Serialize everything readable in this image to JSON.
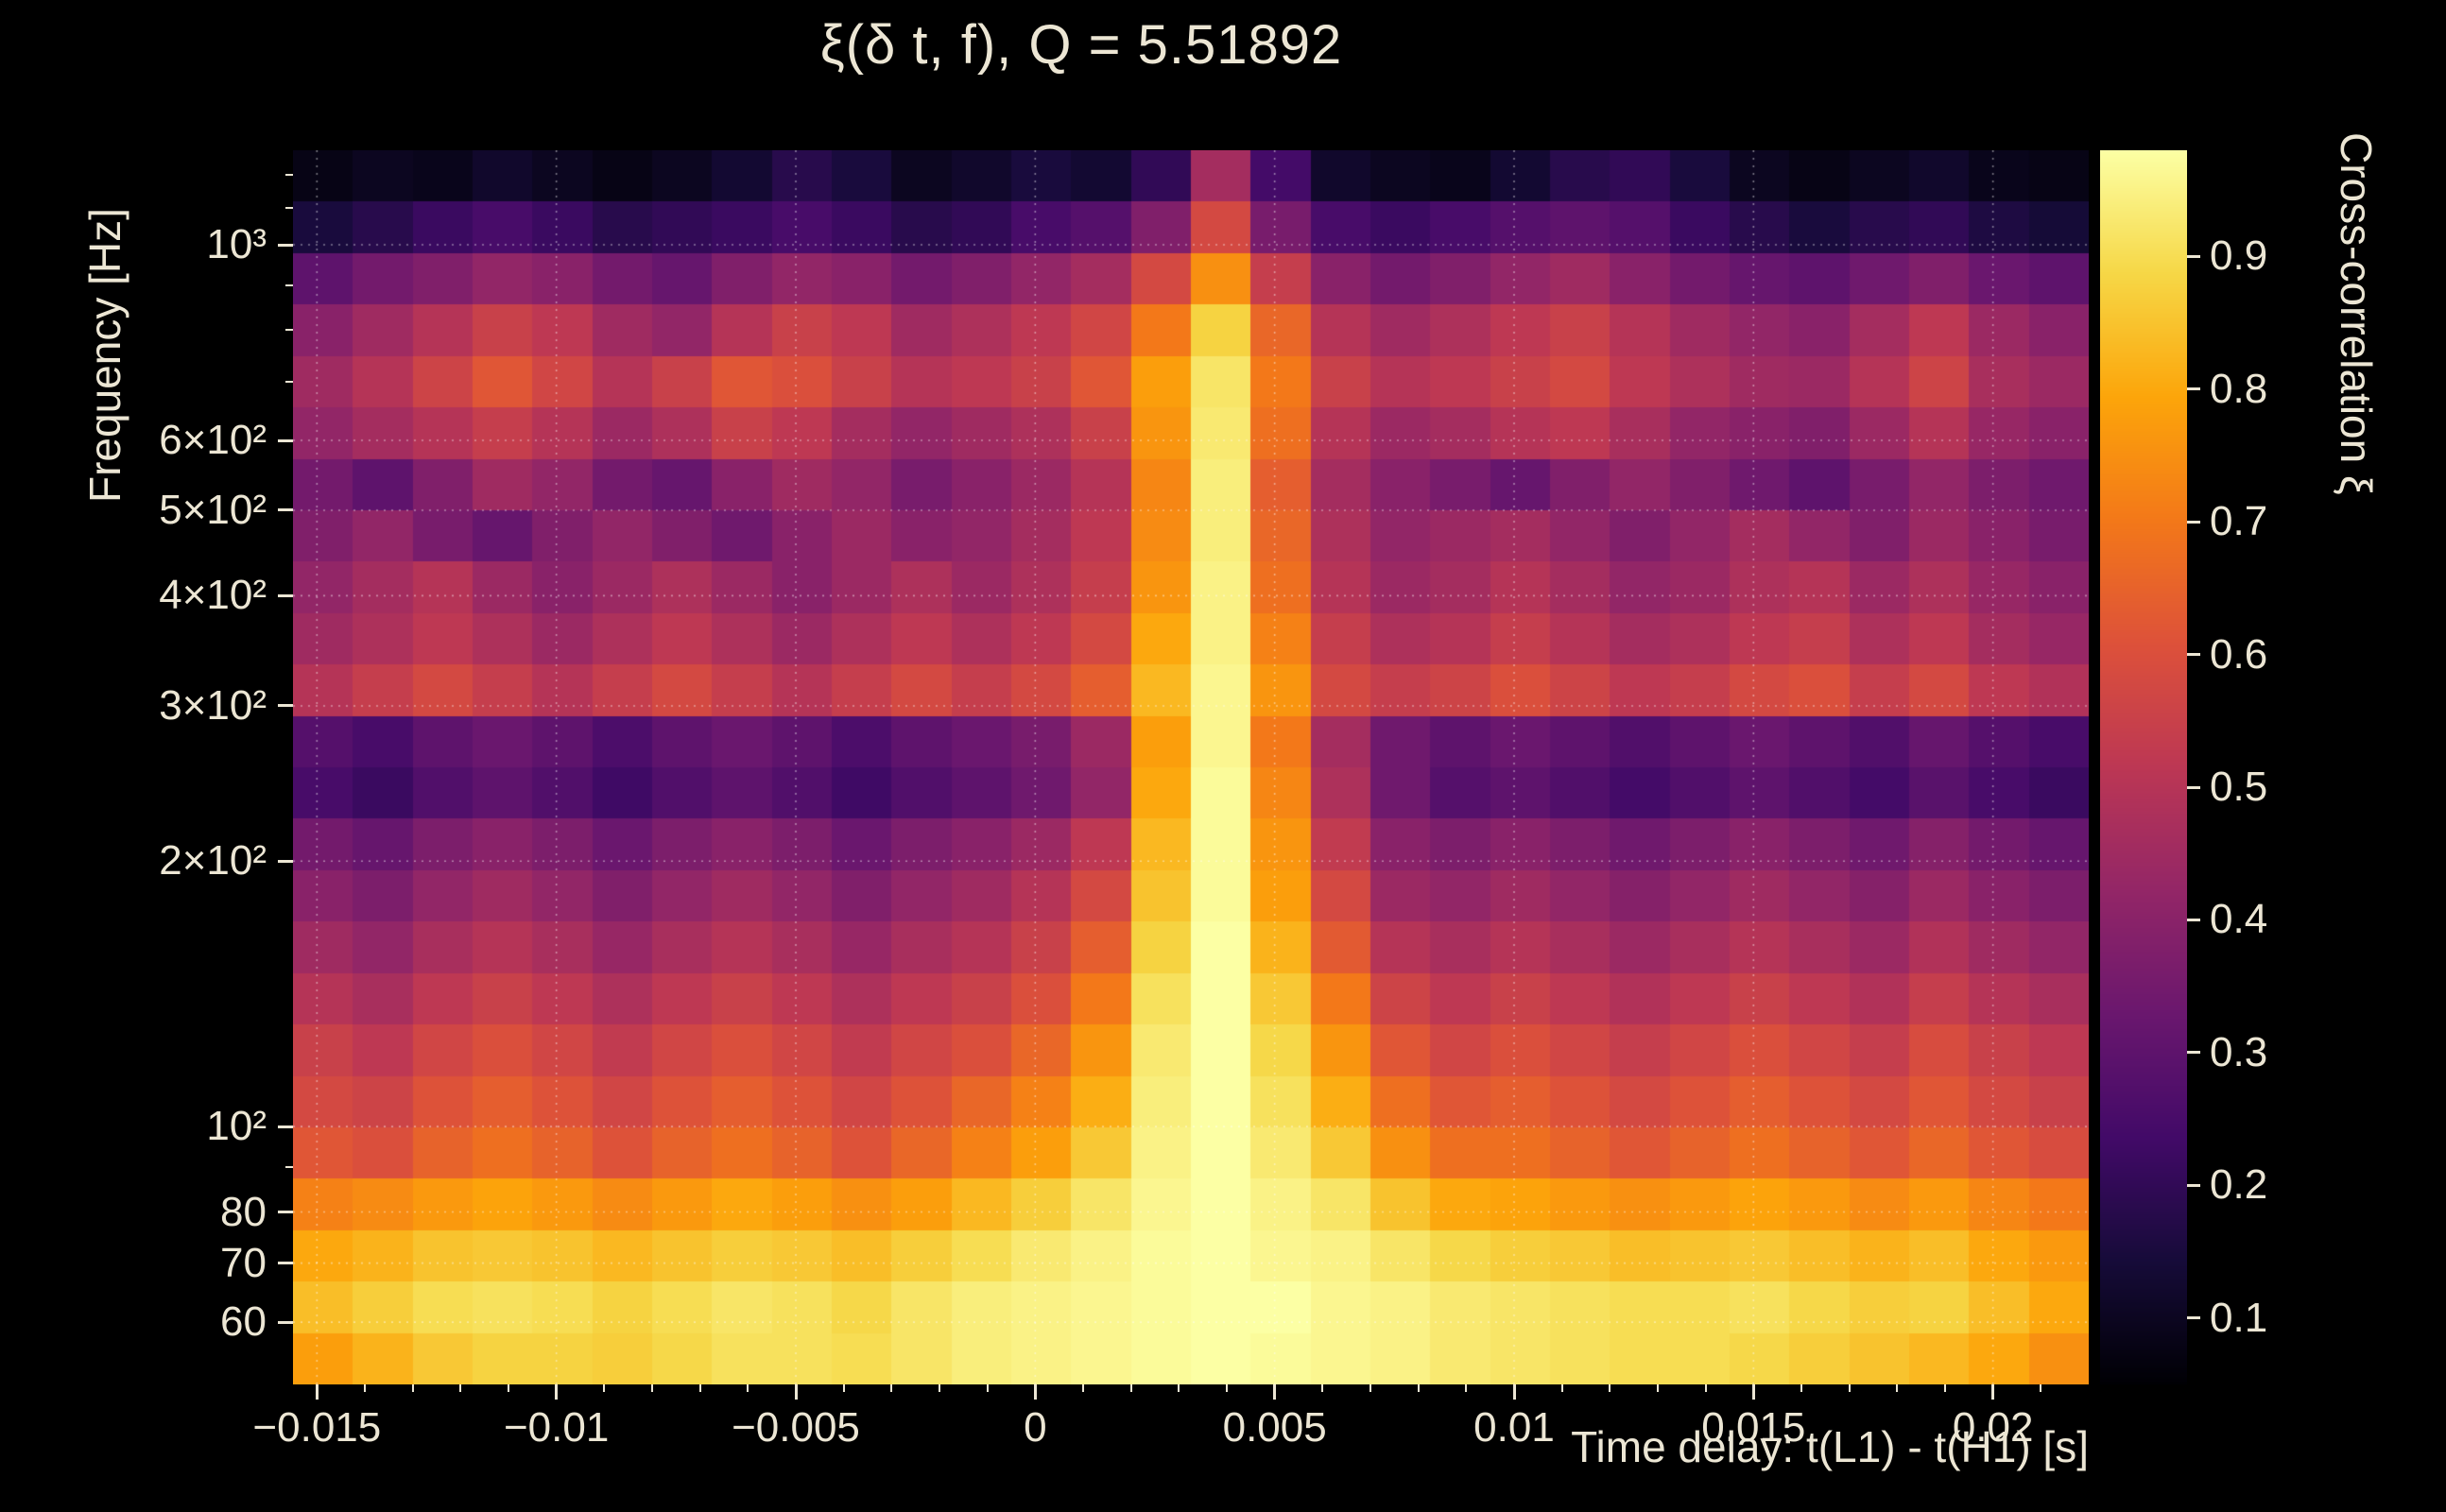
{
  "title": "ξ(δ t, f), Q = 5.51892",
  "colors": {
    "background": "#000000",
    "text": "#ece6d4",
    "grid": "rgba(255,255,255,0.45)"
  },
  "axes": {
    "x": {
      "label": "Time delay: t(L1) - t(H1) [s]",
      "min": -0.0155,
      "max": 0.022,
      "major_ticks": [
        -0.015,
        -0.01,
        -0.005,
        0,
        0.005,
        0.01,
        0.015,
        0.02
      ],
      "tick_labels": [
        "−0.015",
        "−0.01",
        "−0.005",
        "0",
        "0.005",
        "0.01",
        "0.015",
        "0.02"
      ],
      "minor_step": 0.001
    },
    "y": {
      "label": "Frequency [Hz]",
      "scale": "log",
      "min": 51,
      "max": 1280,
      "major_ticks": [
        60,
        70,
        80,
        100,
        200,
        300,
        400,
        500,
        600,
        1000
      ],
      "tick_labels": [
        "60",
        "70",
        "80",
        "10²",
        "2×10²",
        "3×10²",
        "4×10²",
        "5×10²",
        "6×10²",
        "10³"
      ],
      "minor_ticks": [
        90,
        700,
        800,
        900,
        1100,
        1200
      ]
    },
    "z": {
      "label": "Cross-correlation ξ",
      "min": 0.05,
      "max": 0.98,
      "ticks": [
        0.1,
        0.2,
        0.3,
        0.4,
        0.5,
        0.6,
        0.7,
        0.8,
        0.9
      ],
      "tick_labels": [
        "0.1",
        "0.2",
        "0.3",
        "0.4",
        "0.5",
        "0.6",
        "0.7",
        "0.8",
        "0.9"
      ]
    }
  },
  "chart_data": {
    "type": "heatmap",
    "title": "ξ(δ t, f), Q = 5.51892",
    "q_value": 5.51892,
    "xlabel": "Time delay: t(L1) - t(H1) [s]",
    "ylabel": "Frequency [Hz]",
    "zlabel": "Cross-correlation ξ",
    "x_range_s": [
      -0.0155,
      0.022
    ],
    "x_bin_width_s": 0.00125,
    "y_range_hz": [
      51,
      1280
    ],
    "y_scale": "log",
    "peak_time_delay_s": 0.0044,
    "n_cols": 30,
    "n_rows": 24,
    "row_center_freqs_hz_top_to_bottom": [
      1197,
      1047,
      915,
      800,
      700,
      612,
      535,
      468,
      409,
      357,
      312,
      273,
      239,
      209,
      182,
      160,
      140,
      122,
      107,
      93,
      82,
      71,
      62,
      55
    ],
    "colormap": "inferno",
    "colormap_stops": [
      [
        0.0,
        "#000004"
      ],
      [
        0.1,
        "#160b39"
      ],
      [
        0.2,
        "#420a68"
      ],
      [
        0.3,
        "#6a176e"
      ],
      [
        0.4,
        "#932667"
      ],
      [
        0.5,
        "#bc3754"
      ],
      [
        0.6,
        "#dd513a"
      ],
      [
        0.7,
        "#f37819"
      ],
      [
        0.8,
        "#fca50a"
      ],
      [
        0.9,
        "#f6d746"
      ],
      [
        1.0,
        "#fcffa4"
      ]
    ],
    "values_rows_top_to_bottom": [
      [
        0.08,
        0.1,
        0.09,
        0.12,
        0.1,
        0.08,
        0.1,
        0.13,
        0.18,
        0.15,
        0.1,
        0.12,
        0.15,
        0.13,
        0.2,
        0.46,
        0.24,
        0.12,
        0.1,
        0.09,
        0.13,
        0.18,
        0.2,
        0.15,
        0.1,
        0.08,
        0.1,
        0.12,
        0.09,
        0.08
      ],
      [
        0.15,
        0.18,
        0.22,
        0.25,
        0.22,
        0.18,
        0.2,
        0.22,
        0.25,
        0.22,
        0.18,
        0.2,
        0.25,
        0.28,
        0.38,
        0.58,
        0.36,
        0.25,
        0.22,
        0.25,
        0.28,
        0.3,
        0.28,
        0.22,
        0.18,
        0.15,
        0.18,
        0.2,
        0.16,
        0.14
      ],
      [
        0.3,
        0.35,
        0.38,
        0.42,
        0.4,
        0.35,
        0.32,
        0.38,
        0.42,
        0.4,
        0.35,
        0.38,
        0.42,
        0.46,
        0.58,
        0.75,
        0.54,
        0.4,
        0.35,
        0.38,
        0.42,
        0.45,
        0.4,
        0.35,
        0.32,
        0.3,
        0.34,
        0.38,
        0.33,
        0.3
      ],
      [
        0.4,
        0.45,
        0.5,
        0.55,
        0.52,
        0.45,
        0.42,
        0.5,
        0.55,
        0.52,
        0.45,
        0.48,
        0.52,
        0.57,
        0.7,
        0.88,
        0.66,
        0.5,
        0.45,
        0.48,
        0.52,
        0.55,
        0.5,
        0.45,
        0.42,
        0.4,
        0.46,
        0.52,
        0.44,
        0.4
      ],
      [
        0.45,
        0.5,
        0.56,
        0.62,
        0.57,
        0.5,
        0.55,
        0.62,
        0.6,
        0.55,
        0.5,
        0.52,
        0.55,
        0.62,
        0.78,
        0.92,
        0.7,
        0.55,
        0.5,
        0.52,
        0.55,
        0.58,
        0.52,
        0.48,
        0.45,
        0.44,
        0.5,
        0.56,
        0.47,
        0.44
      ],
      [
        0.42,
        0.46,
        0.5,
        0.54,
        0.5,
        0.44,
        0.48,
        0.55,
        0.52,
        0.46,
        0.42,
        0.45,
        0.48,
        0.55,
        0.76,
        0.93,
        0.68,
        0.5,
        0.44,
        0.46,
        0.5,
        0.52,
        0.47,
        0.42,
        0.4,
        0.38,
        0.44,
        0.5,
        0.43,
        0.4
      ],
      [
        0.35,
        0.3,
        0.38,
        0.45,
        0.42,
        0.35,
        0.32,
        0.4,
        0.45,
        0.42,
        0.36,
        0.4,
        0.44,
        0.5,
        0.73,
        0.94,
        0.64,
        0.46,
        0.4,
        0.36,
        0.32,
        0.38,
        0.42,
        0.38,
        0.34,
        0.3,
        0.36,
        0.42,
        0.37,
        0.34
      ],
      [
        0.38,
        0.42,
        0.36,
        0.32,
        0.38,
        0.42,
        0.38,
        0.34,
        0.4,
        0.44,
        0.4,
        0.42,
        0.46,
        0.52,
        0.74,
        0.94,
        0.66,
        0.48,
        0.42,
        0.44,
        0.46,
        0.42,
        0.38,
        0.42,
        0.46,
        0.42,
        0.38,
        0.44,
        0.4,
        0.36
      ],
      [
        0.42,
        0.46,
        0.5,
        0.44,
        0.4,
        0.44,
        0.48,
        0.44,
        0.4,
        0.44,
        0.48,
        0.44,
        0.48,
        0.54,
        0.76,
        0.95,
        0.68,
        0.5,
        0.44,
        0.46,
        0.5,
        0.46,
        0.42,
        0.44,
        0.48,
        0.5,
        0.44,
        0.48,
        0.43,
        0.4
      ],
      [
        0.45,
        0.48,
        0.52,
        0.48,
        0.44,
        0.48,
        0.52,
        0.48,
        0.44,
        0.48,
        0.52,
        0.48,
        0.52,
        0.58,
        0.8,
        0.95,
        0.72,
        0.54,
        0.48,
        0.5,
        0.54,
        0.5,
        0.46,
        0.48,
        0.52,
        0.54,
        0.48,
        0.52,
        0.46,
        0.43
      ],
      [
        0.5,
        0.54,
        0.58,
        0.54,
        0.5,
        0.54,
        0.58,
        0.54,
        0.5,
        0.54,
        0.58,
        0.54,
        0.58,
        0.64,
        0.83,
        0.96,
        0.76,
        0.58,
        0.54,
        0.56,
        0.6,
        0.56,
        0.52,
        0.54,
        0.58,
        0.6,
        0.54,
        0.58,
        0.52,
        0.49
      ],
      [
        0.28,
        0.25,
        0.3,
        0.33,
        0.3,
        0.26,
        0.3,
        0.33,
        0.3,
        0.26,
        0.3,
        0.33,
        0.36,
        0.44,
        0.78,
        0.96,
        0.7,
        0.46,
        0.34,
        0.3,
        0.33,
        0.3,
        0.27,
        0.3,
        0.33,
        0.3,
        0.27,
        0.32,
        0.28,
        0.25
      ],
      [
        0.25,
        0.22,
        0.27,
        0.3,
        0.27,
        0.23,
        0.27,
        0.3,
        0.27,
        0.23,
        0.27,
        0.3,
        0.34,
        0.42,
        0.8,
        0.97,
        0.73,
        0.48,
        0.34,
        0.28,
        0.3,
        0.27,
        0.24,
        0.27,
        0.3,
        0.27,
        0.24,
        0.29,
        0.25,
        0.22
      ],
      [
        0.35,
        0.32,
        0.37,
        0.4,
        0.37,
        0.33,
        0.37,
        0.4,
        0.37,
        0.33,
        0.37,
        0.4,
        0.44,
        0.52,
        0.83,
        0.97,
        0.76,
        0.53,
        0.4,
        0.37,
        0.4,
        0.37,
        0.34,
        0.37,
        0.4,
        0.37,
        0.34,
        0.39,
        0.35,
        0.32
      ],
      [
        0.4,
        0.37,
        0.42,
        0.45,
        0.42,
        0.38,
        0.42,
        0.45,
        0.42,
        0.38,
        0.42,
        0.45,
        0.5,
        0.58,
        0.85,
        0.97,
        0.78,
        0.58,
        0.44,
        0.42,
        0.45,
        0.42,
        0.39,
        0.42,
        0.45,
        0.42,
        0.39,
        0.44,
        0.4,
        0.37
      ],
      [
        0.45,
        0.42,
        0.47,
        0.5,
        0.47,
        0.43,
        0.47,
        0.5,
        0.47,
        0.43,
        0.47,
        0.5,
        0.55,
        0.64,
        0.88,
        0.98,
        0.82,
        0.63,
        0.5,
        0.47,
        0.5,
        0.47,
        0.44,
        0.47,
        0.5,
        0.47,
        0.44,
        0.49,
        0.45,
        0.42
      ],
      [
        0.5,
        0.47,
        0.52,
        0.55,
        0.52,
        0.48,
        0.52,
        0.55,
        0.52,
        0.48,
        0.52,
        0.55,
        0.6,
        0.7,
        0.91,
        0.98,
        0.86,
        0.7,
        0.56,
        0.52,
        0.55,
        0.52,
        0.49,
        0.52,
        0.55,
        0.52,
        0.49,
        0.54,
        0.5,
        0.47
      ],
      [
        0.55,
        0.52,
        0.57,
        0.6,
        0.57,
        0.53,
        0.57,
        0.6,
        0.57,
        0.53,
        0.57,
        0.6,
        0.66,
        0.76,
        0.93,
        0.98,
        0.89,
        0.76,
        0.62,
        0.57,
        0.6,
        0.57,
        0.54,
        0.57,
        0.6,
        0.57,
        0.54,
        0.59,
        0.55,
        0.52
      ],
      [
        0.58,
        0.56,
        0.61,
        0.64,
        0.61,
        0.57,
        0.61,
        0.64,
        0.61,
        0.57,
        0.61,
        0.66,
        0.72,
        0.81,
        0.94,
        0.98,
        0.91,
        0.81,
        0.68,
        0.62,
        0.64,
        0.61,
        0.58,
        0.61,
        0.64,
        0.61,
        0.58,
        0.62,
        0.58,
        0.55
      ],
      [
        0.62,
        0.6,
        0.65,
        0.68,
        0.65,
        0.61,
        0.65,
        0.68,
        0.65,
        0.61,
        0.66,
        0.72,
        0.78,
        0.86,
        0.95,
        0.98,
        0.93,
        0.86,
        0.75,
        0.68,
        0.68,
        0.65,
        0.62,
        0.65,
        0.68,
        0.65,
        0.62,
        0.66,
        0.62,
        0.59
      ],
      [
        0.72,
        0.74,
        0.77,
        0.79,
        0.77,
        0.74,
        0.77,
        0.8,
        0.78,
        0.75,
        0.78,
        0.83,
        0.87,
        0.92,
        0.96,
        0.98,
        0.95,
        0.92,
        0.85,
        0.8,
        0.79,
        0.77,
        0.75,
        0.77,
        0.79,
        0.77,
        0.74,
        0.77,
        0.73,
        0.7
      ],
      [
        0.8,
        0.82,
        0.85,
        0.86,
        0.85,
        0.83,
        0.85,
        0.87,
        0.86,
        0.84,
        0.87,
        0.9,
        0.93,
        0.95,
        0.97,
        0.98,
        0.96,
        0.95,
        0.92,
        0.89,
        0.87,
        0.86,
        0.84,
        0.85,
        0.86,
        0.84,
        0.82,
        0.84,
        0.8,
        0.77
      ],
      [
        0.84,
        0.87,
        0.9,
        0.91,
        0.9,
        0.88,
        0.9,
        0.92,
        0.91,
        0.89,
        0.92,
        0.94,
        0.95,
        0.96,
        0.97,
        0.99,
        0.98,
        0.96,
        0.95,
        0.93,
        0.92,
        0.91,
        0.9,
        0.9,
        0.91,
        0.89,
        0.87,
        0.88,
        0.84,
        0.8
      ],
      [
        0.78,
        0.82,
        0.86,
        0.88,
        0.88,
        0.87,
        0.89,
        0.91,
        0.91,
        0.9,
        0.92,
        0.94,
        0.95,
        0.96,
        0.97,
        0.98,
        0.97,
        0.96,
        0.95,
        0.93,
        0.92,
        0.91,
        0.9,
        0.9,
        0.89,
        0.87,
        0.85,
        0.83,
        0.8,
        0.75
      ]
    ],
    "legend_position": "right-colorbar",
    "grid": "dotted-major"
  }
}
